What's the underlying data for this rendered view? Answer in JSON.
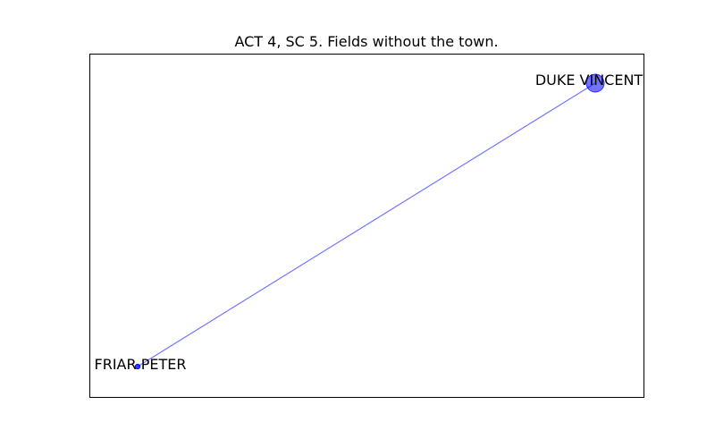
{
  "title": "ACT 4, SC 5. Fields without the town.",
  "colors": {
    "node": "#0000ff",
    "edge": "#0000ff",
    "frame": "#000000",
    "background": "#ffffff"
  },
  "graph": {
    "nodes": [
      {
        "id": "duke-vincent",
        "label": "DUKE VINCENT",
        "relative_size": "large"
      },
      {
        "id": "friar-peter",
        "label": "FRIAR PETER",
        "relative_size": "small"
      }
    ],
    "edges": [
      {
        "source": "duke-vincent",
        "target": "friar-peter"
      }
    ]
  }
}
